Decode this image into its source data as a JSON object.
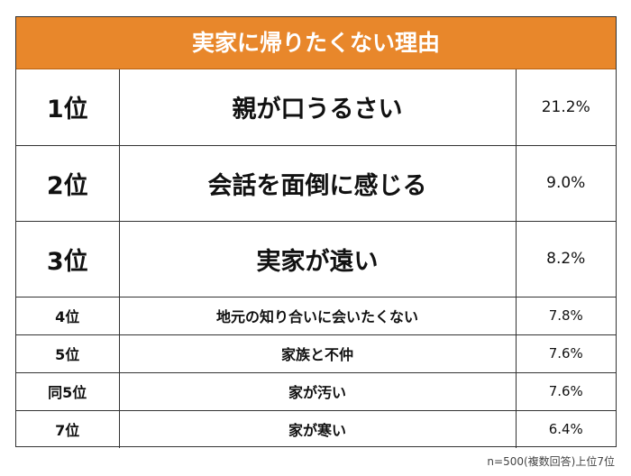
{
  "chart_data": {
    "type": "table",
    "title": "実家に帰りたくない理由",
    "rows": [
      {
        "rank": "1位",
        "reason": "親が口うるさい",
        "value": "21.2%"
      },
      {
        "rank": "2位",
        "reason": "会話を面倒に感じる",
        "value": "9.0%"
      },
      {
        "rank": "3位",
        "reason": "実家が遠い",
        "value": "8.2%"
      },
      {
        "rank": "4位",
        "reason": "地元の知り合いに会いたくない",
        "value": "7.8%"
      },
      {
        "rank": "5位",
        "reason": "家族と不仲",
        "value": "7.6%"
      },
      {
        "rank": "同5位",
        "reason": "家が汚い",
        "value": "7.6%"
      },
      {
        "rank": "7位",
        "reason": "家が寒い",
        "value": "6.4%"
      }
    ],
    "values": [
      21.2,
      9.0,
      8.2,
      7.8,
      7.6,
      7.6,
      6.4
    ],
    "footnote": "n=500(複数回答)上位7位"
  }
}
